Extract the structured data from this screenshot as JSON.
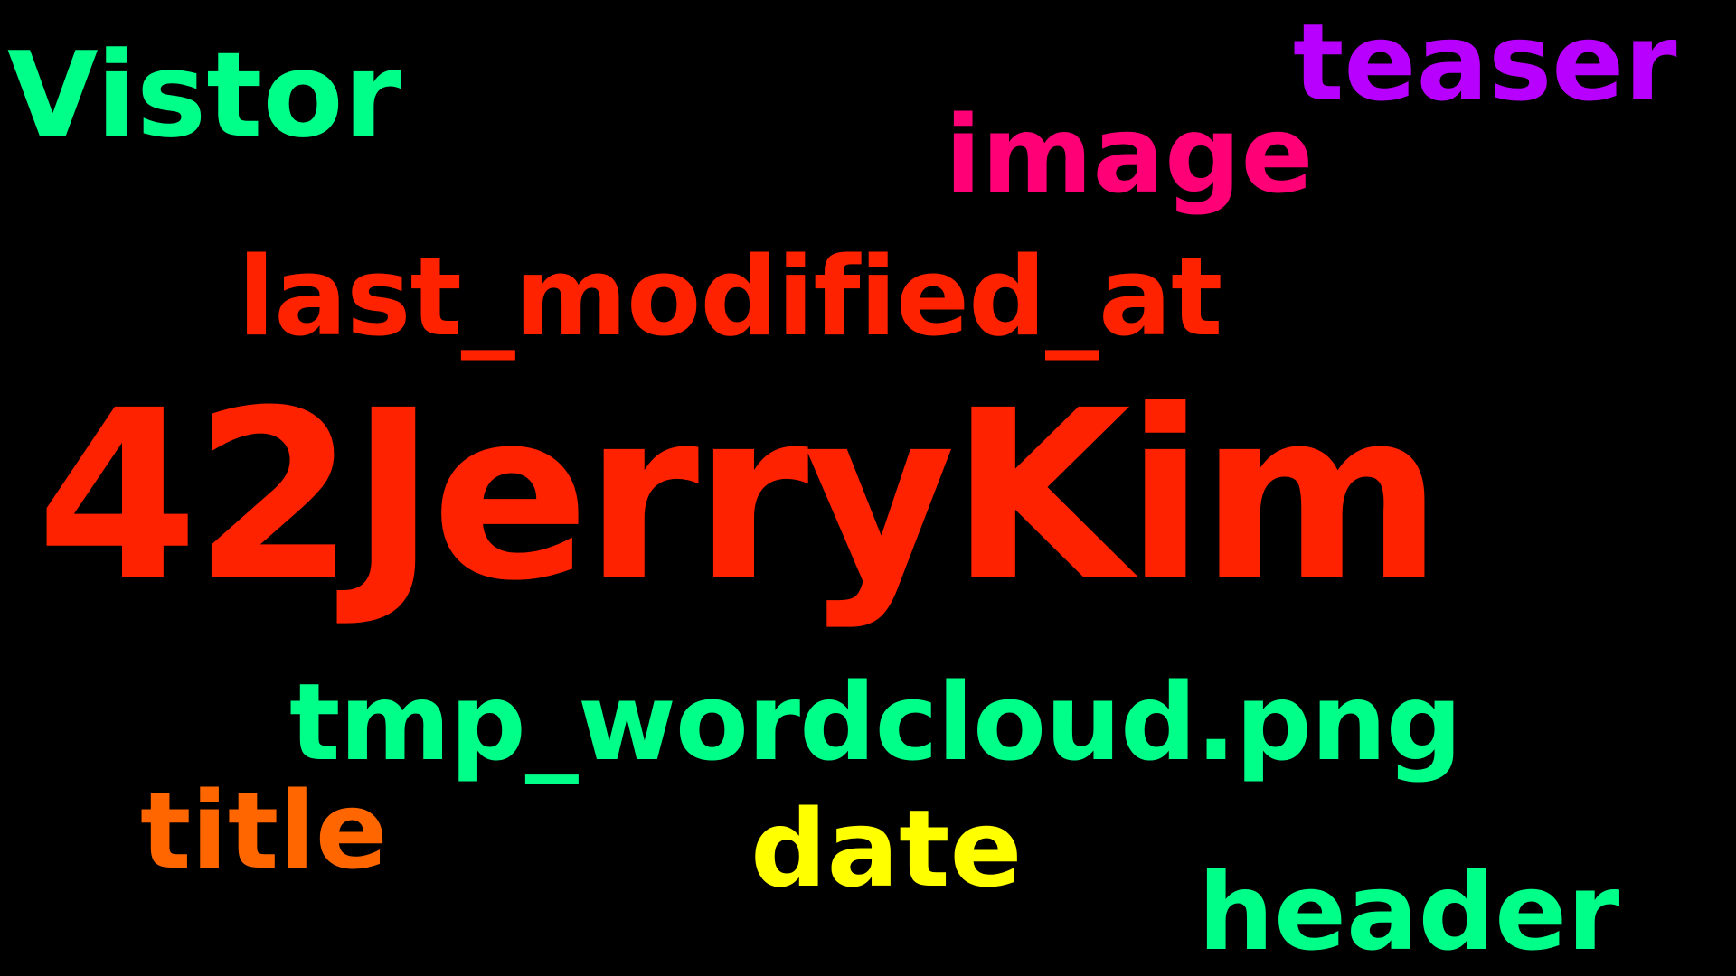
{
  "background_color": "#000000",
  "words": {
    "vistor": {
      "text": "Vistor",
      "color": "#00FF88"
    },
    "teaser": {
      "text": "teaser",
      "color": "#B800FF"
    },
    "image": {
      "text": "image",
      "color": "#FF0077"
    },
    "lastmod": {
      "text": "last_modified_at",
      "color": "#FF2200"
    },
    "jerry": {
      "text": "42JerryKim",
      "color": "#FF2200"
    },
    "tmp": {
      "text": "tmp_wordcloud.png",
      "color": "#00FF88"
    },
    "title": {
      "text": "title",
      "color": "#FF6600"
    },
    "date": {
      "text": "date",
      "color": "#FFFF00"
    },
    "header": {
      "text": "header",
      "color": "#00FF88"
    }
  }
}
